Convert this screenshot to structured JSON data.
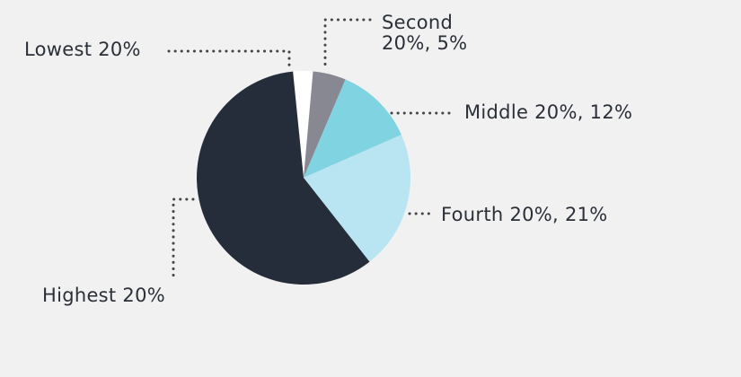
{
  "chart_data": {
    "type": "pie",
    "slices": [
      {
        "label_lines": [
          "Lowest 20%"
        ],
        "value": 3,
        "color": "#ffffff"
      },
      {
        "label_lines": [
          "Second",
          "20%, 5%"
        ],
        "value": 5,
        "color": "#888892"
      },
      {
        "label_lines": [
          "Middle 20%, 12%"
        ],
        "value": 12,
        "color": "#80d3e0"
      },
      {
        "label_lines": [
          "Fourth 20%, 21%"
        ],
        "value": 21,
        "color": "#b9e4f2"
      },
      {
        "label_lines": [
          "Highest 20%"
        ],
        "value": 59,
        "color": "#262d3a"
      }
    ],
    "leader_line_color": "#444444",
    "legend": "callouts"
  }
}
